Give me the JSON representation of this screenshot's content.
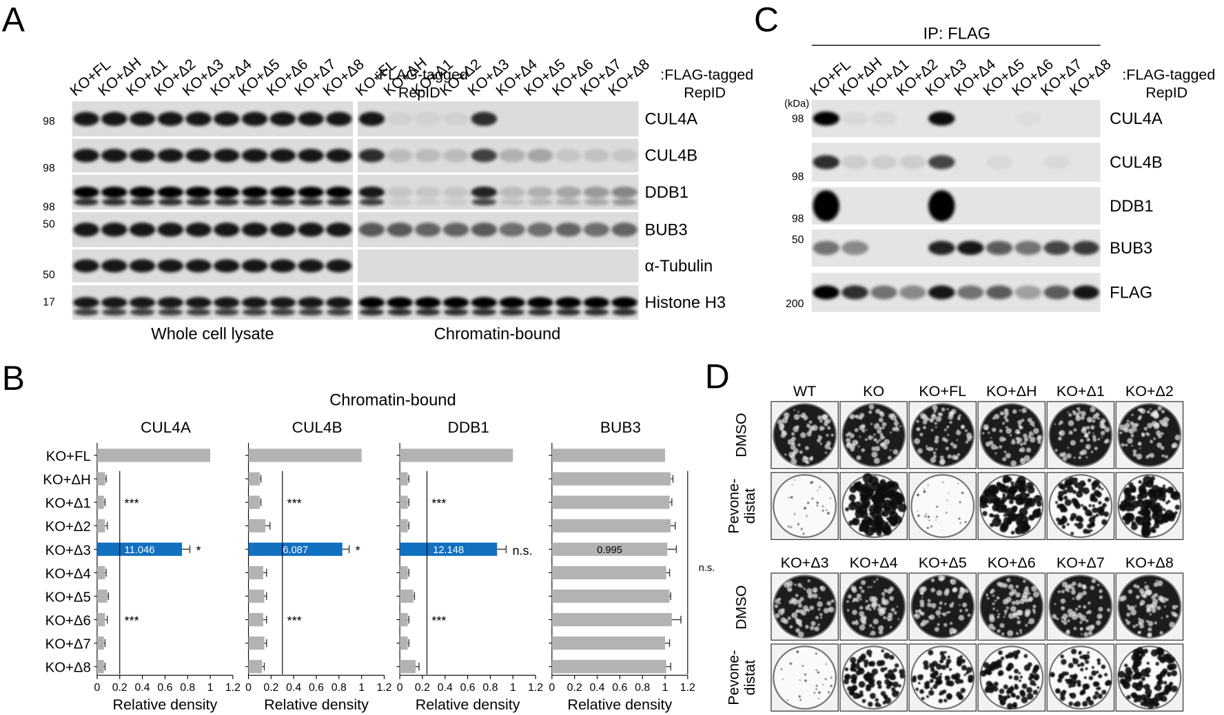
{
  "panel_a": {
    "letter": "A",
    "lanes": [
      "KO+FL",
      "KO+ΔH",
      "KO+Δ1",
      "KO+Δ2",
      "KO+Δ3",
      "KO+Δ4",
      "KO+Δ5",
      "KO+Δ6",
      "KO+Δ7",
      "KO+Δ8"
    ],
    "tag_label": [
      ":FLAG-tagged",
      "RepID"
    ],
    "rows": [
      {
        "label": "CUL4A",
        "marker": 98
      },
      {
        "label": "CUL4B",
        "marker": 98
      },
      {
        "label": "DDB1",
        "marker": 98
      },
      {
        "label": "BUB3",
        "marker": 50
      },
      {
        "label": "α-Tubulin",
        "marker": 50
      },
      {
        "label": "Histone H3",
        "marker": 17
      }
    ],
    "sections": [
      "Whole cell lysate",
      "Chromatin-bound"
    ]
  },
  "panel_b": {
    "letter": "B",
    "title": "Chromatin-bound"
  },
  "chart_data": [
    {
      "type": "bar",
      "orientation": "horizontal",
      "title": "CUL4A",
      "xlabel": "Relative density",
      "categories": [
        "KO+FL",
        "KO+ΔH",
        "KO+Δ1",
        "KO+Δ2",
        "KO+Δ3",
        "KO+Δ4",
        "KO+Δ5",
        "KO+Δ6",
        "KO+Δ7",
        "KO+Δ8"
      ],
      "values": [
        1.0,
        0.07,
        0.06,
        0.07,
        0.75,
        0.07,
        0.09,
        0.07,
        0.06,
        0.06
      ],
      "errors": [
        0,
        0.01,
        0.01,
        0.02,
        0.07,
        0.01,
        0.01,
        0.02,
        0.01,
        0.01
      ],
      "colors": [
        "#b3b3b3",
        "#b3b3b3",
        "#b3b3b3",
        "#b3b3b3",
        "#1270c0",
        "#b3b3b3",
        "#b3b3b3",
        "#b3b3b3",
        "#b3b3b3",
        "#b3b3b3"
      ],
      "bar_texts": [
        null,
        null,
        null,
        null,
        "11.046",
        null,
        null,
        null,
        null,
        null
      ],
      "significance": [
        null,
        null,
        "***",
        null,
        "*",
        null,
        null,
        "***",
        null,
        null
      ],
      "bracket_x": 0.2,
      "xlim": [
        0,
        1.2
      ],
      "xticks": [
        0,
        0.2,
        0.4,
        0.6,
        0.8,
        1,
        1.2
      ]
    },
    {
      "type": "bar",
      "orientation": "horizontal",
      "title": "CUL4B",
      "xlabel": "Relative density",
      "categories": [
        null,
        null,
        null,
        null,
        null,
        null,
        null,
        null,
        null,
        null
      ],
      "values": [
        1.0,
        0.1,
        0.1,
        0.15,
        0.83,
        0.13,
        0.14,
        0.13,
        0.14,
        0.12
      ],
      "errors": [
        0,
        0.01,
        0.01,
        0.04,
        0.06,
        0.03,
        0.02,
        0.03,
        0.02,
        0.02
      ],
      "colors": [
        "#b3b3b3",
        "#b3b3b3",
        "#b3b3b3",
        "#b3b3b3",
        "#1270c0",
        "#b3b3b3",
        "#b3b3b3",
        "#b3b3b3",
        "#b3b3b3",
        "#b3b3b3"
      ],
      "bar_texts": [
        null,
        null,
        null,
        null,
        "6.087",
        null,
        null,
        null,
        null,
        null
      ],
      "significance": [
        null,
        null,
        "***",
        null,
        "*",
        null,
        null,
        "***",
        null,
        null
      ],
      "bracket_x": 0.3,
      "xlim": [
        0,
        1.2
      ],
      "xticks": [
        0,
        0.2,
        0.4,
        0.6,
        0.8,
        1,
        1.2
      ]
    },
    {
      "type": "bar",
      "orientation": "horizontal",
      "title": "DDB1",
      "xlabel": "Relative density",
      "categories": [
        null,
        null,
        null,
        null,
        null,
        null,
        null,
        null,
        null,
        null
      ],
      "values": [
        1.0,
        0.07,
        0.07,
        0.07,
        0.86,
        0.07,
        0.12,
        0.07,
        0.07,
        0.14
      ],
      "errors": [
        0,
        0.01,
        0.01,
        0.01,
        0.08,
        0.01,
        0.01,
        0.01,
        0.01,
        0.03
      ],
      "colors": [
        "#b3b3b3",
        "#b3b3b3",
        "#b3b3b3",
        "#b3b3b3",
        "#1270c0",
        "#b3b3b3",
        "#b3b3b3",
        "#b3b3b3",
        "#b3b3b3",
        "#b3b3b3"
      ],
      "bar_texts": [
        null,
        null,
        null,
        null,
        "12.148",
        null,
        null,
        null,
        null,
        null
      ],
      "significance": [
        null,
        null,
        "***",
        null,
        "n.s.",
        null,
        null,
        "***",
        null,
        null
      ],
      "bracket_x": 0.24,
      "xlim": [
        0,
        1.2
      ],
      "xticks": [
        0,
        0.2,
        0.4,
        0.6,
        0.8,
        1,
        1.2
      ]
    },
    {
      "type": "bar",
      "orientation": "horizontal",
      "title": "BUB3",
      "xlabel": "Relative density",
      "categories": [
        null,
        null,
        null,
        null,
        null,
        null,
        null,
        null,
        null,
        null
      ],
      "values": [
        1.0,
        1.05,
        1.04,
        1.05,
        1.02,
        1.01,
        1.04,
        1.06,
        1.0,
        1.01
      ],
      "errors": [
        0,
        0.02,
        0.02,
        0.04,
        0.08,
        0.03,
        0.01,
        0.08,
        0.04,
        0.04
      ],
      "colors": [
        "#b3b3b3",
        "#b3b3b3",
        "#b3b3b3",
        "#b3b3b3",
        "#b3b3b3",
        "#b3b3b3",
        "#b3b3b3",
        "#b3b3b3",
        "#b3b3b3",
        "#b3b3b3"
      ],
      "bar_texts": [
        null,
        null,
        null,
        null,
        "0.995",
        null,
        null,
        null,
        null,
        null
      ],
      "bracket_x": 1.2,
      "bracket_label": "n.s.",
      "xlim": [
        0,
        1.2
      ],
      "xticks": [
        0,
        0.2,
        0.4,
        0.6,
        0.8,
        1,
        1.2
      ]
    }
  ],
  "panel_c": {
    "letter": "C",
    "header": "IP: FLAG",
    "unit": "(kDa)",
    "lanes": [
      "KO+FL",
      "KO+ΔH",
      "KO+Δ1",
      "KO+Δ2",
      "KO+Δ3",
      "KO+Δ4",
      "KO+Δ5",
      "KO+Δ6",
      "KO+Δ7",
      "KO+Δ8"
    ],
    "tag_label": [
      ":FLAG-tagged",
      "RepID"
    ],
    "rows": [
      {
        "label": "CUL4A",
        "marker": 98
      },
      {
        "label": "CUL4B",
        "marker": 98
      },
      {
        "label": "DDB1",
        "marker": 98
      },
      {
        "label": "BUB3",
        "marker": 50
      },
      {
        "label": "FLAG",
        "marker": 200
      }
    ]
  },
  "panel_d": {
    "letter": "D",
    "samples": [
      "WT",
      "KO",
      "KO+FL",
      "KO+ΔH",
      "KO+Δ1",
      "KO+Δ2",
      "KO+Δ3",
      "KO+Δ4",
      "KO+Δ5",
      "KO+Δ6",
      "KO+Δ7",
      "KO+Δ8"
    ],
    "conditions": [
      [
        "DMSO"
      ],
      [
        "Pevone-",
        "distat"
      ]
    ]
  }
}
